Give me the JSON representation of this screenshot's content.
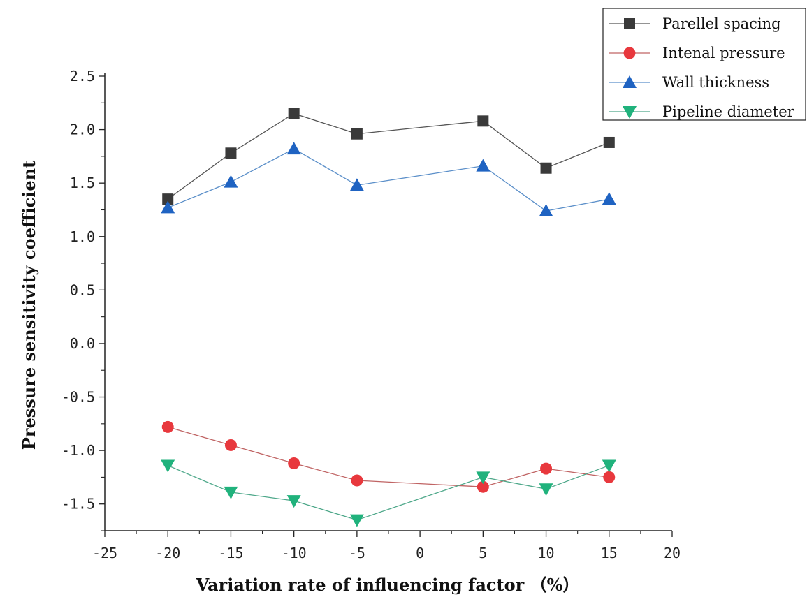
{
  "chart_data": {
    "type": "line",
    "title": "",
    "xlabel": "Variation rate of influencing factor （%）",
    "ylabel": "Pressure sensitivity coefficient",
    "xlim": [
      -25,
      20
    ],
    "ylim": [
      -1.75,
      2.5
    ],
    "xticks": [
      -25,
      -20,
      -15,
      -10,
      -5,
      0,
      5,
      10,
      15,
      20
    ],
    "xtick_labels": [
      "-25",
      "-20",
      "-15",
      "-10",
      "-5",
      "0",
      "5",
      "10",
      "15",
      "20"
    ],
    "yticks": [
      -1.5,
      -1.0,
      -0.5,
      0.0,
      0.5,
      1.0,
      1.5,
      2.0,
      2.5
    ],
    "ytick_labels": [
      "-1.5",
      "-1.0",
      "-0.5",
      "0.0",
      "0.5",
      "1.0",
      "1.5",
      "2.0",
      "2.5"
    ],
    "grid": false,
    "legend_position": "top-right",
    "x": [
      -20,
      -15,
      -10,
      -5,
      5,
      10,
      15
    ],
    "series": [
      {
        "name": "Parellel spacing",
        "marker": "square",
        "line_color": "#555555",
        "marker_color": "#3a3a3a",
        "values": [
          1.35,
          1.78,
          2.15,
          1.96,
          2.08,
          1.64,
          1.88
        ]
      },
      {
        "name": "Intenal pressure",
        "marker": "circle",
        "line_color": "#c06464",
        "marker_color": "#e8383d",
        "values": [
          -0.78,
          -0.95,
          -1.12,
          -1.28,
          -1.34,
          -1.17,
          -1.25
        ]
      },
      {
        "name": "Wall thickness",
        "marker": "triangle-up",
        "line_color": "#5b8fc9",
        "marker_color": "#1f63c2",
        "values": [
          1.27,
          1.51,
          1.82,
          1.48,
          1.66,
          1.24,
          1.35
        ]
      },
      {
        "name": "Pipeline diameter",
        "marker": "triangle-down",
        "line_color": "#4ea88a",
        "marker_color": "#20b27c",
        "values": [
          -1.14,
          -1.39,
          -1.47,
          -1.65,
          -1.25,
          -1.36,
          -1.14
        ]
      }
    ]
  }
}
